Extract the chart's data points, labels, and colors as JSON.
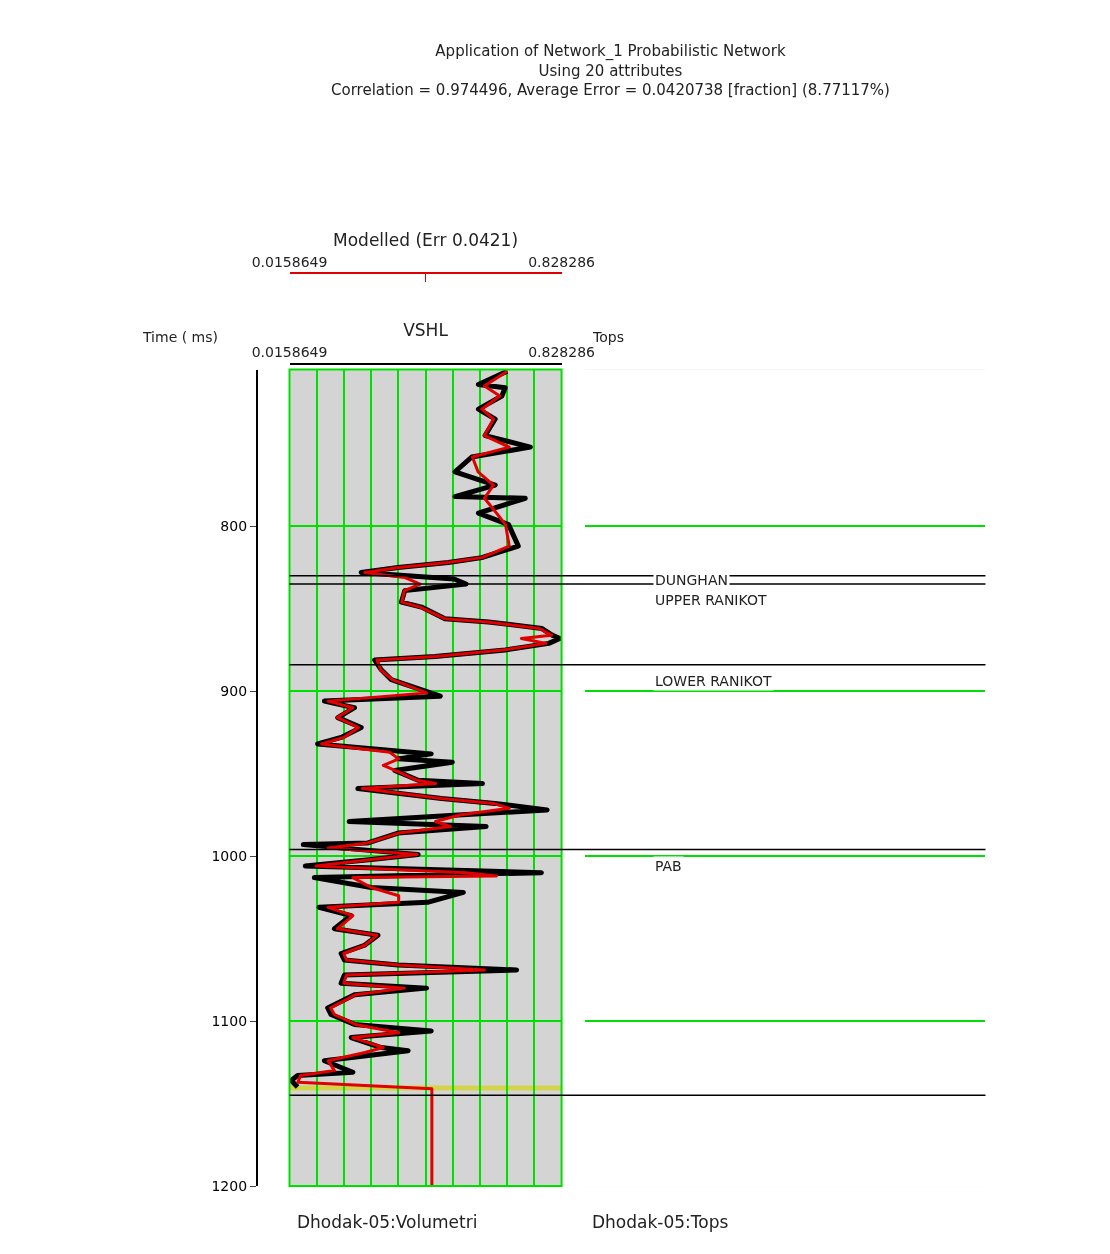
{
  "chart_data": {
    "type": "line",
    "title": "Application of Network_1 Probabilistic Network\nUsing 20 attributes\nCorrelation = 0.974496, Average Error = 0.0420738 [fraction] (8.77117%)",
    "xlabel": "VSHL",
    "x2label": "Modelled (Err 0.0421)",
    "ylabel": "Time ( ms)",
    "orientation": "horizontal",
    "xlim": [
      0.0158649,
      0.828286
    ],
    "xticks": [
      0.0158649,
      {
        "value": 0.0971,
        "label": null
      },
      {
        "value": 0.1783,
        "label": null
      },
      {
        "value": 0.2596,
        "label": null
      },
      {
        "value": 0.3408,
        "label": null
      },
      {
        "value": 0.4221,
        "label": null
      },
      {
        "value": 0.5033,
        "label": null
      },
      {
        "value": 0.5845,
        "label": null
      },
      {
        "value": 0.6658,
        "label": null
      },
      {
        "value": 0.747,
        "label": null
      },
      0.828286
    ],
    "x2lim": [
      0.0158649,
      0.828286
    ],
    "x2ticks": [
      0.0158649,
      {
        "value": 0.4221,
        "label": null
      },
      0.828286
    ],
    "ylim": [
      1200,
      705
    ],
    "yticks": [
      800,
      900,
      1000,
      1100,
      1200
    ],
    "grid": true,
    "series": [
      {
        "color": "#000000",
        "x": [
          706,
          714,
          716,
          721,
          729,
          735,
          745,
          752,
          758,
          767,
          775,
          782,
          783,
          792,
          799,
          812,
          819,
          822,
          825,
          828,
          832,
          835,
          839,
          846,
          849,
          856,
          858,
          862,
          866,
          868,
          871,
          875,
          879,
          881,
          887,
          893,
          903,
          906,
          910,
          916,
          922,
          928,
          932,
          938,
          941,
          943,
          948,
          954,
          956,
          959,
          965,
          968,
          972,
          975,
          979,
          982,
          986,
          992,
          993,
          998,
          999,
          1002,
          1006,
          1010,
          1013,
          1019,
          1022,
          1028,
          1031,
          1036,
          1044,
          1048,
          1054,
          1059,
          1063,
          1066,
          1069,
          1072,
          1077,
          1080,
          1084,
          1092,
          1096,
          1102,
          1106,
          1110,
          1116,
          1118,
          1124,
          1131,
          1133,
          1136,
          1140
        ],
        "values": [
          0.666,
          0.58,
          0.66,
          0.65,
          0.58,
          0.63,
          0.6,
          0.735,
          0.56,
          0.51,
          0.63,
          0.51,
          0.72,
          0.58,
          0.67,
          0.699,
          0.59,
          0.49,
          0.34,
          0.23,
          0.507,
          0.543,
          0.36,
          0.35,
          0.41,
          0.48,
          0.61,
          0.77,
          0.8,
          0.823,
          0.79,
          0.66,
          0.45,
          0.27,
          0.29,
          0.32,
          0.466,
          0.12,
          0.21,
          0.16,
          0.23,
          0.17,
          0.1,
          0.439,
          0.34,
          0.502,
          0.33,
          0.4,
          0.592,
          0.22,
          0.47,
          0.63,
          0.785,
          0.52,
          0.194,
          0.603,
          0.34,
          0.25,
          0.057,
          0.34,
          0.4,
          0.26,
          0.063,
          0.768,
          0.09,
          0.26,
          0.535,
          0.428,
          0.104,
          0.2,
          0.15,
          0.28,
          0.24,
          0.17,
          0.18,
          0.34,
          0.694,
          0.18,
          0.17,
          0.425,
          0.21,
          0.13,
          0.14,
          0.21,
          0.439,
          0.2,
          0.29,
          0.37,
          0.12,
          0.205,
          0.04,
          0.021,
          0.04
        ]
      },
      {
        "color": "#e00000",
        "axis": "x2",
        "x": [
          706,
          715,
          721,
          729,
          735,
          745,
          752,
          758,
          767,
          775,
          783,
          792,
          799,
          812,
          819,
          822,
          825,
          828,
          831,
          835,
          839,
          846,
          849,
          856,
          858,
          862,
          866,
          868,
          871,
          875,
          879,
          881,
          887,
          893,
          901,
          906,
          910,
          916,
          922,
          928,
          932,
          937,
          941,
          945,
          948,
          954,
          956,
          959,
          965,
          968,
          971,
          975,
          979,
          982,
          986,
          992,
          995,
          998,
          999,
          1002,
          1006,
          1010,
          1012,
          1013,
          1019,
          1024,
          1028,
          1031,
          1036,
          1044,
          1048,
          1054,
          1059,
          1063,
          1066,
          1069,
          1072,
          1077,
          1080,
          1084,
          1092,
          1096,
          1102,
          1107,
          1110,
          1116,
          1119,
          1124,
          1130,
          1133,
          1137,
          1141,
          1200
        ],
        "values": [
          0.666,
          0.598,
          0.644,
          0.59,
          0.625,
          0.598,
          0.672,
          0.562,
          0.579,
          0.625,
          0.598,
          0.634,
          0.661,
          0.672,
          0.59,
          0.488,
          0.342,
          0.241,
          0.359,
          0.406,
          0.359,
          0.351,
          0.406,
          0.48,
          0.606,
          0.762,
          0.798,
          0.708,
          0.782,
          0.653,
          0.452,
          0.277,
          0.288,
          0.323,
          0.425,
          0.131,
          0.205,
          0.159,
          0.222,
          0.178,
          0.112,
          0.315,
          0.342,
          0.296,
          0.331,
          0.397,
          0.452,
          0.233,
          0.469,
          0.625,
          0.672,
          0.524,
          0.452,
          0.496,
          0.342,
          0.249,
          0.131,
          0.342,
          0.397,
          0.26,
          0.095,
          0.543,
          0.634,
          0.205,
          0.26,
          0.342,
          0.342,
          0.131,
          0.205,
          0.159,
          0.277,
          0.241,
          0.178,
          0.186,
          0.342,
          0.598,
          0.186,
          0.178,
          0.359,
          0.213,
          0.139,
          0.15,
          0.213,
          0.342,
          0.205,
          0.296,
          0.241,
          0.131,
          0.15,
          0.049,
          0.041,
          0.441,
          0.441
        ]
      }
    ],
    "ref_lines": [
      {
        "axis": "y",
        "value": 830,
        "label": "DUNGHAN"
      },
      {
        "axis": "y",
        "value": 835,
        "label": "UPPER RANIKOT"
      },
      {
        "axis": "y",
        "value": 884,
        "label": "LOWER RANIKOT"
      },
      {
        "axis": "y",
        "value": 996,
        "label": "PAB"
      },
      {
        "axis": "y",
        "value": 1145,
        "label": null
      }
    ],
    "bands": [
      {
        "axis": "y",
        "from": 1139,
        "to": 1142,
        "label": null,
        "color": "#d4d44a"
      }
    ],
    "annotations": [
      "Tops",
      "Dhodak-05:Volumetri",
      "Dhodak-05:Tops"
    ],
    "line_style": "solid",
    "marker": "none",
    "legend": false
  }
}
